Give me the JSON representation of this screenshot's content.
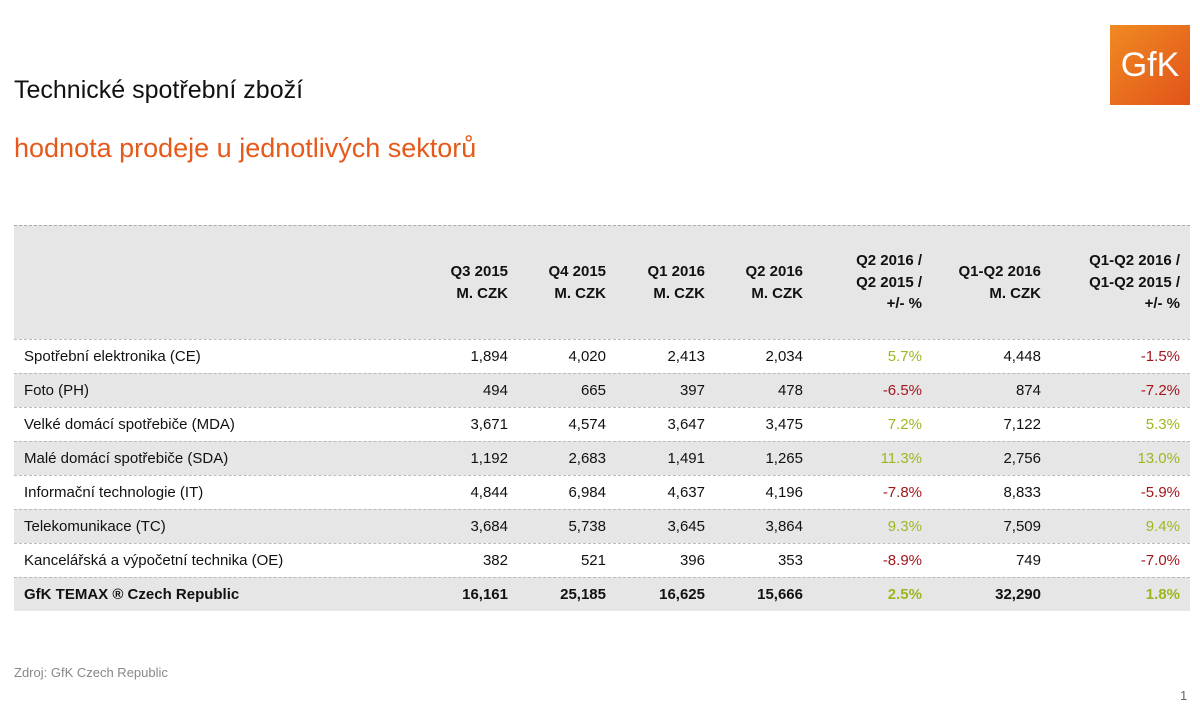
{
  "header": {
    "title": "Technické spotřební zboží",
    "subtitle": "hodnota prodeje u jednotlivých sektorů",
    "logo": "GfK"
  },
  "table": {
    "columns": [
      [
        "Q3 2015",
        "M. CZK"
      ],
      [
        "Q4 2015",
        "M. CZK"
      ],
      [
        "Q1 2016",
        "M. CZK"
      ],
      [
        "Q2 2016",
        "M. CZK"
      ],
      [
        "Q2 2016 /",
        "Q2 2015 /",
        "+/- %"
      ],
      [
        "Q1-Q2 2016",
        "M. CZK"
      ],
      [
        "Q1-Q2 2016 /",
        "Q1-Q2 2015 /",
        "+/- %"
      ]
    ],
    "rows": [
      [
        "Spotřební elektronika (CE)",
        "1,894",
        "4,020",
        "2,413",
        "2,034",
        "5.7%",
        "4,448",
        "-1.5%"
      ],
      [
        "Foto (PH)",
        "494",
        "665",
        "397",
        "478",
        "-6.5%",
        "874",
        "-7.2%"
      ],
      [
        "Velké domácí spotřebiče (MDA)",
        "3,671",
        "4,574",
        "3,647",
        "3,475",
        "7.2%",
        "7,122",
        "5.3%"
      ],
      [
        "Malé domácí spotřebiče (SDA)",
        "1,192",
        "2,683",
        "1,491",
        "1,265",
        "11.3%",
        "2,756",
        "13.0%"
      ],
      [
        "Informační technologie (IT)",
        "4,844",
        "6,984",
        "4,637",
        "4,196",
        "-7.8%",
        "8,833",
        "-5.9%"
      ],
      [
        "Telekomunikace (TC)",
        "3,684",
        "5,738",
        "3,645",
        "3,864",
        "9.3%",
        "7,509",
        "9.4%"
      ],
      [
        "Kancelářská a výpočetní technika (OE)",
        "382",
        "521",
        "396",
        "353",
        "-8.9%",
        "749",
        "-7.0%"
      ],
      [
        "GfK TEMAX ® Czech Republic",
        "16,161",
        "25,185",
        "16,625",
        "15,666",
        "2.5%",
        "32,290",
        "1.8%"
      ]
    ],
    "positive_color": "#9bb81e",
    "negative_color": "#a3161c"
  },
  "footer": {
    "source": "Zdroj: GfK Czech Republic",
    "page": "1"
  }
}
